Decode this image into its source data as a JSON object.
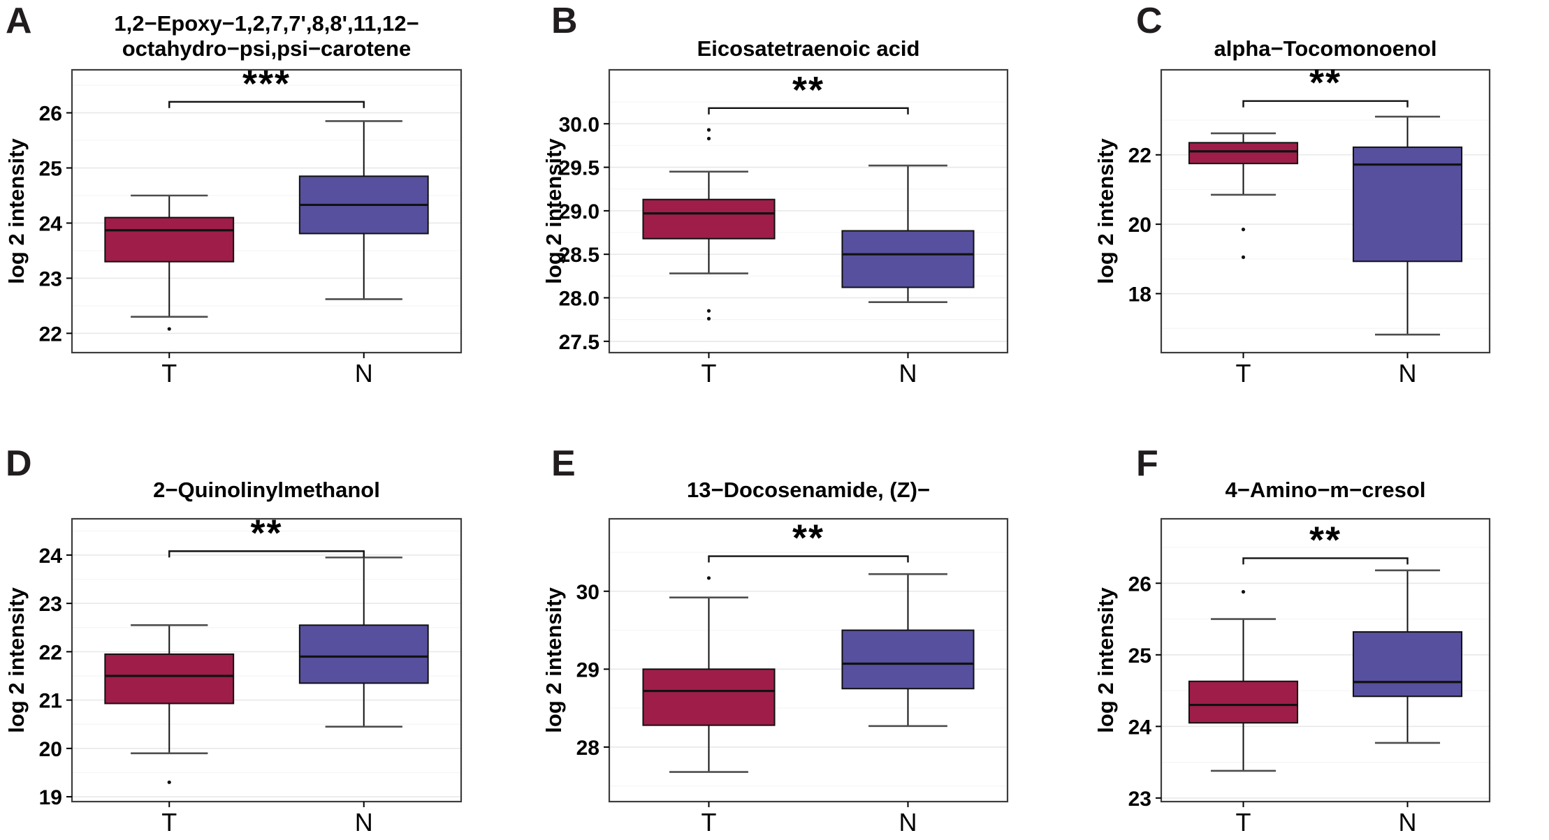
{
  "figure": {
    "ylabel": "log 2 intensity",
    "categories": [
      "T",
      "N"
    ],
    "colors": {
      "tumor_box": "#9E1E49",
      "normal_box": "#57509E",
      "box_stroke": "#111111",
      "whisker_cap": "#4d4d4d",
      "panel_border": "#3d3d3d",
      "grid_major": "#e8e8e8",
      "grid_minor": "#f5f5f5",
      "text": "#000000"
    }
  },
  "chart_data": [
    {
      "type": "box",
      "panel_label": "A",
      "title_lines": [
        "1,2−Epoxy−1,2,7,7',8,8',11,12−",
        "octahydro−psi,psi−carotene"
      ],
      "significance": "***",
      "bracket_y": 26.2,
      "ylim": [
        21.65,
        26.78
      ],
      "yticks": [
        22,
        23,
        24,
        25,
        26
      ],
      "ytick_labels": [
        "22",
        "23",
        "24",
        "25",
        "26"
      ],
      "series": [
        {
          "group": "T",
          "color": "#9E1E49",
          "whisker_low": 22.3,
          "q1": 23.3,
          "median": 23.87,
          "q3": 24.1,
          "whisker_high": 24.5,
          "outliers": [
            22.08
          ]
        },
        {
          "group": "N",
          "color": "#57509E",
          "whisker_low": 22.62,
          "q1": 23.81,
          "median": 24.33,
          "q3": 24.85,
          "whisker_high": 25.85,
          "outliers": []
        }
      ]
    },
    {
      "type": "box",
      "panel_label": "B",
      "title_lines": [
        "Eicosatetraenoic acid"
      ],
      "significance": "**",
      "bracket_y": 30.18,
      "ylim": [
        27.37,
        30.62
      ],
      "yticks": [
        27.5,
        28.0,
        28.5,
        29.0,
        29.5,
        30.0
      ],
      "ytick_labels": [
        "27.5",
        "28.0",
        "28.5",
        "29.0",
        "29.5",
        "30.0"
      ],
      "series": [
        {
          "group": "T",
          "color": "#9E1E49",
          "whisker_low": 28.28,
          "q1": 28.68,
          "median": 28.97,
          "q3": 29.13,
          "whisker_high": 29.45,
          "outliers": [
            29.93,
            29.83,
            27.85,
            27.76
          ]
        },
        {
          "group": "N",
          "color": "#57509E",
          "whisker_low": 27.95,
          "q1": 28.12,
          "median": 28.5,
          "q3": 28.77,
          "whisker_high": 29.52,
          "outliers": []
        }
      ]
    },
    {
      "type": "box",
      "panel_label": "C",
      "title_lines": [
        "alpha−Tocomonoenol"
      ],
      "significance": "**",
      "bracket_y": 23.55,
      "ylim": [
        16.3,
        24.45
      ],
      "yticks": [
        18,
        20,
        22
      ],
      "ytick_labels": [
        "18",
        "20",
        "22"
      ],
      "series": [
        {
          "group": "T",
          "color": "#9E1E49",
          "whisker_low": 20.85,
          "q1": 21.75,
          "median": 22.1,
          "q3": 22.35,
          "whisker_high": 22.62,
          "outliers": [
            19.85,
            19.05
          ]
        },
        {
          "group": "N",
          "color": "#57509E",
          "whisker_low": 16.82,
          "q1": 18.93,
          "median": 21.72,
          "q3": 22.22,
          "whisker_high": 23.1,
          "outliers": []
        }
      ]
    },
    {
      "type": "box",
      "panel_label": "D",
      "title_lines": [
        "2−Quinolinylmethanol"
      ],
      "significance": "**",
      "bracket_y": 24.08,
      "ylim": [
        18.9,
        24.75
      ],
      "yticks": [
        19,
        20,
        21,
        22,
        23,
        24
      ],
      "ytick_labels": [
        "19",
        "20",
        "21",
        "22",
        "23",
        "24"
      ],
      "series": [
        {
          "group": "T",
          "color": "#9E1E49",
          "whisker_low": 19.9,
          "q1": 20.93,
          "median": 21.5,
          "q3": 21.95,
          "whisker_high": 22.55,
          "outliers": [
            19.3
          ]
        },
        {
          "group": "N",
          "color": "#57509E",
          "whisker_low": 20.45,
          "q1": 21.35,
          "median": 21.9,
          "q3": 22.55,
          "whisker_high": 23.95,
          "outliers": []
        }
      ]
    },
    {
      "type": "box",
      "panel_label": "E",
      "title_lines": [
        "13−Docosenamide, (Z)−"
      ],
      "significance": "**",
      "bracket_y": 30.45,
      "ylim": [
        27.3,
        30.93
      ],
      "yticks": [
        28,
        29,
        30
      ],
      "ytick_labels": [
        "28",
        "29",
        "30"
      ],
      "series": [
        {
          "group": "T",
          "color": "#9E1E49",
          "whisker_low": 27.68,
          "q1": 28.28,
          "median": 28.72,
          "q3": 29.0,
          "whisker_high": 29.92,
          "outliers": [
            30.17
          ]
        },
        {
          "group": "N",
          "color": "#57509E",
          "whisker_low": 28.27,
          "q1": 28.75,
          "median": 29.07,
          "q3": 29.5,
          "whisker_high": 30.22,
          "outliers": []
        }
      ]
    },
    {
      "type": "box",
      "panel_label": "F",
      "title_lines": [
        "4−Amino−m−cresol"
      ],
      "significance": "**",
      "bracket_y": 26.35,
      "ylim": [
        22.95,
        26.9
      ],
      "yticks": [
        23,
        24,
        25,
        26
      ],
      "ytick_labels": [
        "23",
        "24",
        "25",
        "26"
      ],
      "series": [
        {
          "group": "T",
          "color": "#9E1E49",
          "whisker_low": 23.38,
          "q1": 24.05,
          "median": 24.3,
          "q3": 24.63,
          "whisker_high": 25.5,
          "outliers": [
            25.88
          ]
        },
        {
          "group": "N",
          "color": "#57509E",
          "whisker_low": 23.77,
          "q1": 24.42,
          "median": 24.62,
          "q3": 25.32,
          "whisker_high": 26.18,
          "outliers": []
        }
      ]
    }
  ]
}
